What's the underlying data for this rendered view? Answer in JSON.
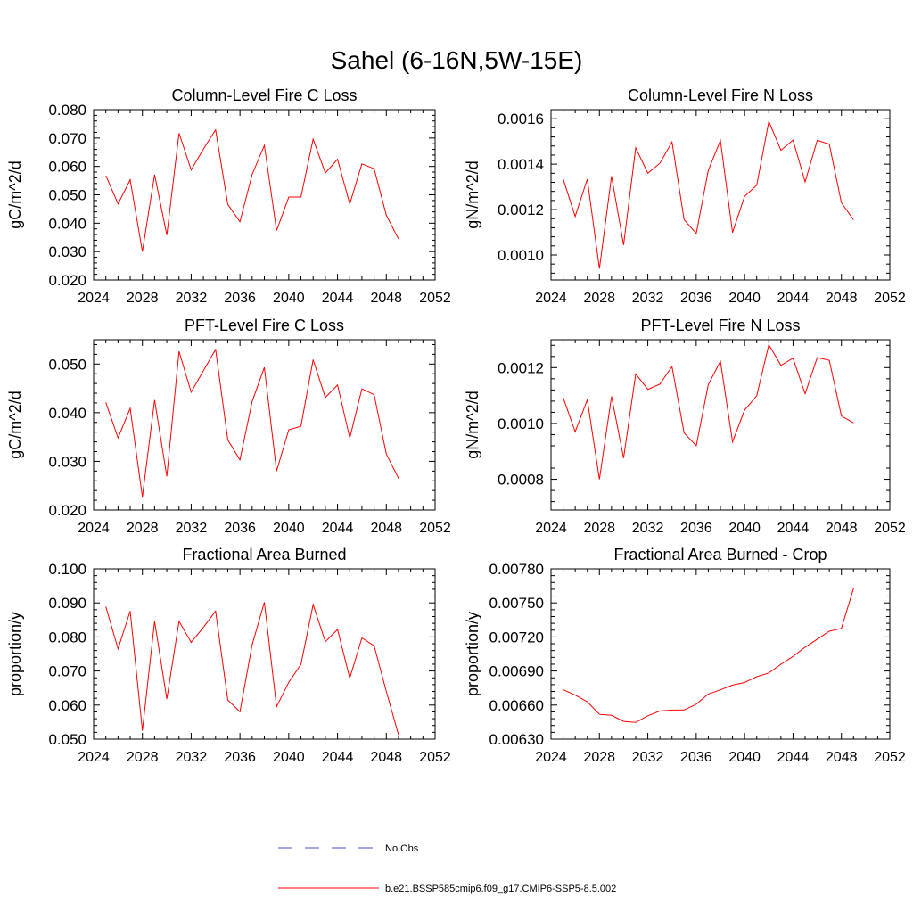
{
  "figure": {
    "title": "Sahel (6-16N,5W-15E)"
  },
  "legend": {
    "entries": [
      {
        "label": "No Obs",
        "color": "#4b4bbf",
        "style": "dashed"
      },
      {
        "label": "b.e21.BSSP585cmip6.f09_g17.CMIP6-SSP5-8.5.002",
        "color": "#ff0000",
        "style": "solid"
      }
    ]
  },
  "chart_data": [
    {
      "type": "line",
      "title": "Column-Level Fire C Loss",
      "ylabel": "gC/m^2/d",
      "xlim": [
        2024,
        2052
      ],
      "xticks": [
        "2024",
        "2028",
        "2032",
        "2036",
        "2040",
        "2044",
        "2048",
        "2052"
      ],
      "ylim": [
        0.02,
        0.08
      ],
      "yticks": [
        "0.020",
        "0.030",
        "0.040",
        "0.050",
        "0.060",
        "0.070",
        "0.080"
      ],
      "x": [
        2025,
        2026,
        2027,
        2028,
        2029,
        2030,
        2031,
        2032,
        2033,
        2034,
        2035,
        2036,
        2037,
        2038,
        2039,
        2040,
        2041,
        2042,
        2043,
        2044,
        2045,
        2046,
        2047,
        2048,
        2049
      ],
      "series": [
        {
          "name": "b.e21.BSSP585cmip6.f09_g17.CMIP6-SSP5-8.5.002",
          "color": "#ff0000",
          "values": [
            0.0568,
            0.0468,
            0.0553,
            0.03,
            0.0571,
            0.0358,
            0.0717,
            0.0588,
            0.0661,
            0.0729,
            0.0466,
            0.0405,
            0.0572,
            0.0674,
            0.0374,
            0.0492,
            0.0492,
            0.0696,
            0.0577,
            0.0625,
            0.0468,
            0.0609,
            0.0592,
            0.0428,
            0.0344
          ]
        }
      ]
    },
    {
      "type": "line",
      "title": "Column-Level Fire N Loss",
      "ylabel": "gN/m^2/d",
      "xlim": [
        2024,
        2052
      ],
      "xticks": [
        "2024",
        "2028",
        "2032",
        "2036",
        "2040",
        "2044",
        "2048",
        "2052"
      ],
      "ylim": [
        0.00089,
        0.00164
      ],
      "yticks": [
        "0.0010",
        "0.0012",
        "0.0014",
        "0.0016"
      ],
      "x": [
        2025,
        2026,
        2027,
        2028,
        2029,
        2030,
        2031,
        2032,
        2033,
        2034,
        2035,
        2036,
        2037,
        2038,
        2039,
        2040,
        2041,
        2042,
        2043,
        2044,
        2045,
        2046,
        2047,
        2048,
        2049
      ],
      "series": [
        {
          "name": "b.e21.BSSP585cmip6.f09_g17.CMIP6-SSP5-8.5.002",
          "color": "#ff0000",
          "values": [
            0.001335,
            0.00117,
            0.001334,
            0.00094,
            0.001347,
            0.001044,
            0.001472,
            0.00136,
            0.001404,
            0.001498,
            0.001155,
            0.001095,
            0.001373,
            0.001505,
            0.001099,
            0.001258,
            0.001307,
            0.001588,
            0.001461,
            0.001506,
            0.001322,
            0.001505,
            0.001488,
            0.00123,
            0.001155
          ]
        }
      ]
    },
    {
      "type": "line",
      "title": "PFT-Level Fire C Loss",
      "ylabel": "gC/m^2/d",
      "xlim": [
        2024,
        2052
      ],
      "xticks": [
        "2024",
        "2028",
        "2032",
        "2036",
        "2040",
        "2044",
        "2048",
        "2052"
      ],
      "ylim": [
        0.02,
        0.055
      ],
      "yticks": [
        "0.020",
        "0.030",
        "0.040",
        "0.050"
      ],
      "x": [
        2025,
        2026,
        2027,
        2028,
        2029,
        2030,
        2031,
        2032,
        2033,
        2034,
        2035,
        2036,
        2037,
        2038,
        2039,
        2040,
        2041,
        2042,
        2043,
        2044,
        2045,
        2046,
        2047,
        2048,
        2049
      ],
      "series": [
        {
          "name": "b.e21.BSSP585cmip6.f09_g17.CMIP6-SSP5-8.5.002",
          "color": "#ff0000",
          "values": [
            0.0421,
            0.0348,
            0.0409,
            0.0227,
            0.0426,
            0.0269,
            0.0526,
            0.0442,
            0.0486,
            0.053,
            0.0344,
            0.0303,
            0.0423,
            0.0493,
            0.028,
            0.0365,
            0.0372,
            0.0509,
            0.0431,
            0.0457,
            0.0348,
            0.0449,
            0.0437,
            0.0315,
            0.0265
          ]
        }
      ]
    },
    {
      "type": "line",
      "title": "PFT-Level Fire N Loss",
      "ylabel": "gN/m^2/d",
      "xlim": [
        2024,
        2052
      ],
      "xticks": [
        "2024",
        "2028",
        "2032",
        "2036",
        "2040",
        "2044",
        "2048",
        "2052"
      ],
      "ylim": [
        0.00069,
        0.0013
      ],
      "yticks": [
        "0.0008",
        "0.0010",
        "0.0012"
      ],
      "x": [
        2025,
        2026,
        2027,
        2028,
        2029,
        2030,
        2031,
        2032,
        2033,
        2034,
        2035,
        2036,
        2037,
        2038,
        2039,
        2040,
        2041,
        2042,
        2043,
        2044,
        2045,
        2046,
        2047,
        2048,
        2049
      ],
      "series": [
        {
          "name": "b.e21.BSSP585cmip6.f09_g17.CMIP6-SSP5-8.5.002",
          "color": "#ff0000",
          "values": [
            0.001093,
            0.00097,
            0.001085,
            0.0008,
            0.001097,
            0.000876,
            0.001177,
            0.001122,
            0.001141,
            0.001204,
            0.000966,
            0.00092,
            0.001139,
            0.001223,
            0.000934,
            0.001048,
            0.001099,
            0.001282,
            0.001208,
            0.001234,
            0.001106,
            0.001236,
            0.001226,
            0.001027,
            0.001002
          ]
        }
      ]
    },
    {
      "type": "line",
      "title": "Fractional Area Burned",
      "ylabel": "proportion/y",
      "xlim": [
        2024,
        2052
      ],
      "xticks": [
        "2024",
        "2028",
        "2032",
        "2036",
        "2040",
        "2044",
        "2048",
        "2052"
      ],
      "ylim": [
        0.05,
        0.1
      ],
      "yticks": [
        "0.050",
        "0.060",
        "0.070",
        "0.080",
        "0.090",
        "0.100"
      ],
      "x": [
        2025,
        2026,
        2027,
        2028,
        2029,
        2030,
        2031,
        2032,
        2033,
        2034,
        2035,
        2036,
        2037,
        2038,
        2039,
        2040,
        2041,
        2042,
        2043,
        2044,
        2045,
        2046,
        2047,
        2048,
        2049
      ],
      "series": [
        {
          "name": "b.e21.BSSP585cmip6.f09_g17.CMIP6-SSP5-8.5.002",
          "color": "#ff0000",
          "values": [
            0.0889,
            0.0765,
            0.0876,
            0.0525,
            0.0846,
            0.0618,
            0.0846,
            0.0784,
            0.0828,
            0.0876,
            0.0615,
            0.058,
            0.0777,
            0.0902,
            0.0595,
            0.0667,
            0.0719,
            0.0895,
            0.0786,
            0.0822,
            0.0679,
            0.0797,
            0.0774,
            0.064,
            0.0512
          ]
        }
      ]
    },
    {
      "type": "line",
      "title": "Fractional Area Burned - Crop",
      "ylabel": "proportion/y",
      "xlim": [
        2024,
        2052
      ],
      "xticks": [
        "2024",
        "2028",
        "2032",
        "2036",
        "2040",
        "2044",
        "2048",
        "2052"
      ],
      "ylim": [
        0.0063,
        0.0078
      ],
      "yticks": [
        "0.00630",
        "0.00660",
        "0.00690",
        "0.00720",
        "0.00750",
        "0.00780"
      ],
      "x": [
        2025,
        2026,
        2027,
        2028,
        2029,
        2030,
        2031,
        2032,
        2033,
        2034,
        2035,
        2036,
        2037,
        2038,
        2039,
        2040,
        2041,
        2042,
        2043,
        2044,
        2045,
        2046,
        2047,
        2048,
        2049
      ],
      "series": [
        {
          "name": "b.e21.BSSP585cmip6.f09_g17.CMIP6-SSP5-8.5.002",
          "color": "#ff0000",
          "values": [
            0.006736,
            0.006688,
            0.006628,
            0.006518,
            0.00651,
            0.006456,
            0.006447,
            0.006506,
            0.006548,
            0.006556,
            0.006557,
            0.006608,
            0.006697,
            0.006734,
            0.006776,
            0.006799,
            0.00685,
            0.006883,
            0.00696,
            0.007028,
            0.00711,
            0.00718,
            0.00725,
            0.007275,
            0.007627
          ]
        }
      ]
    }
  ]
}
